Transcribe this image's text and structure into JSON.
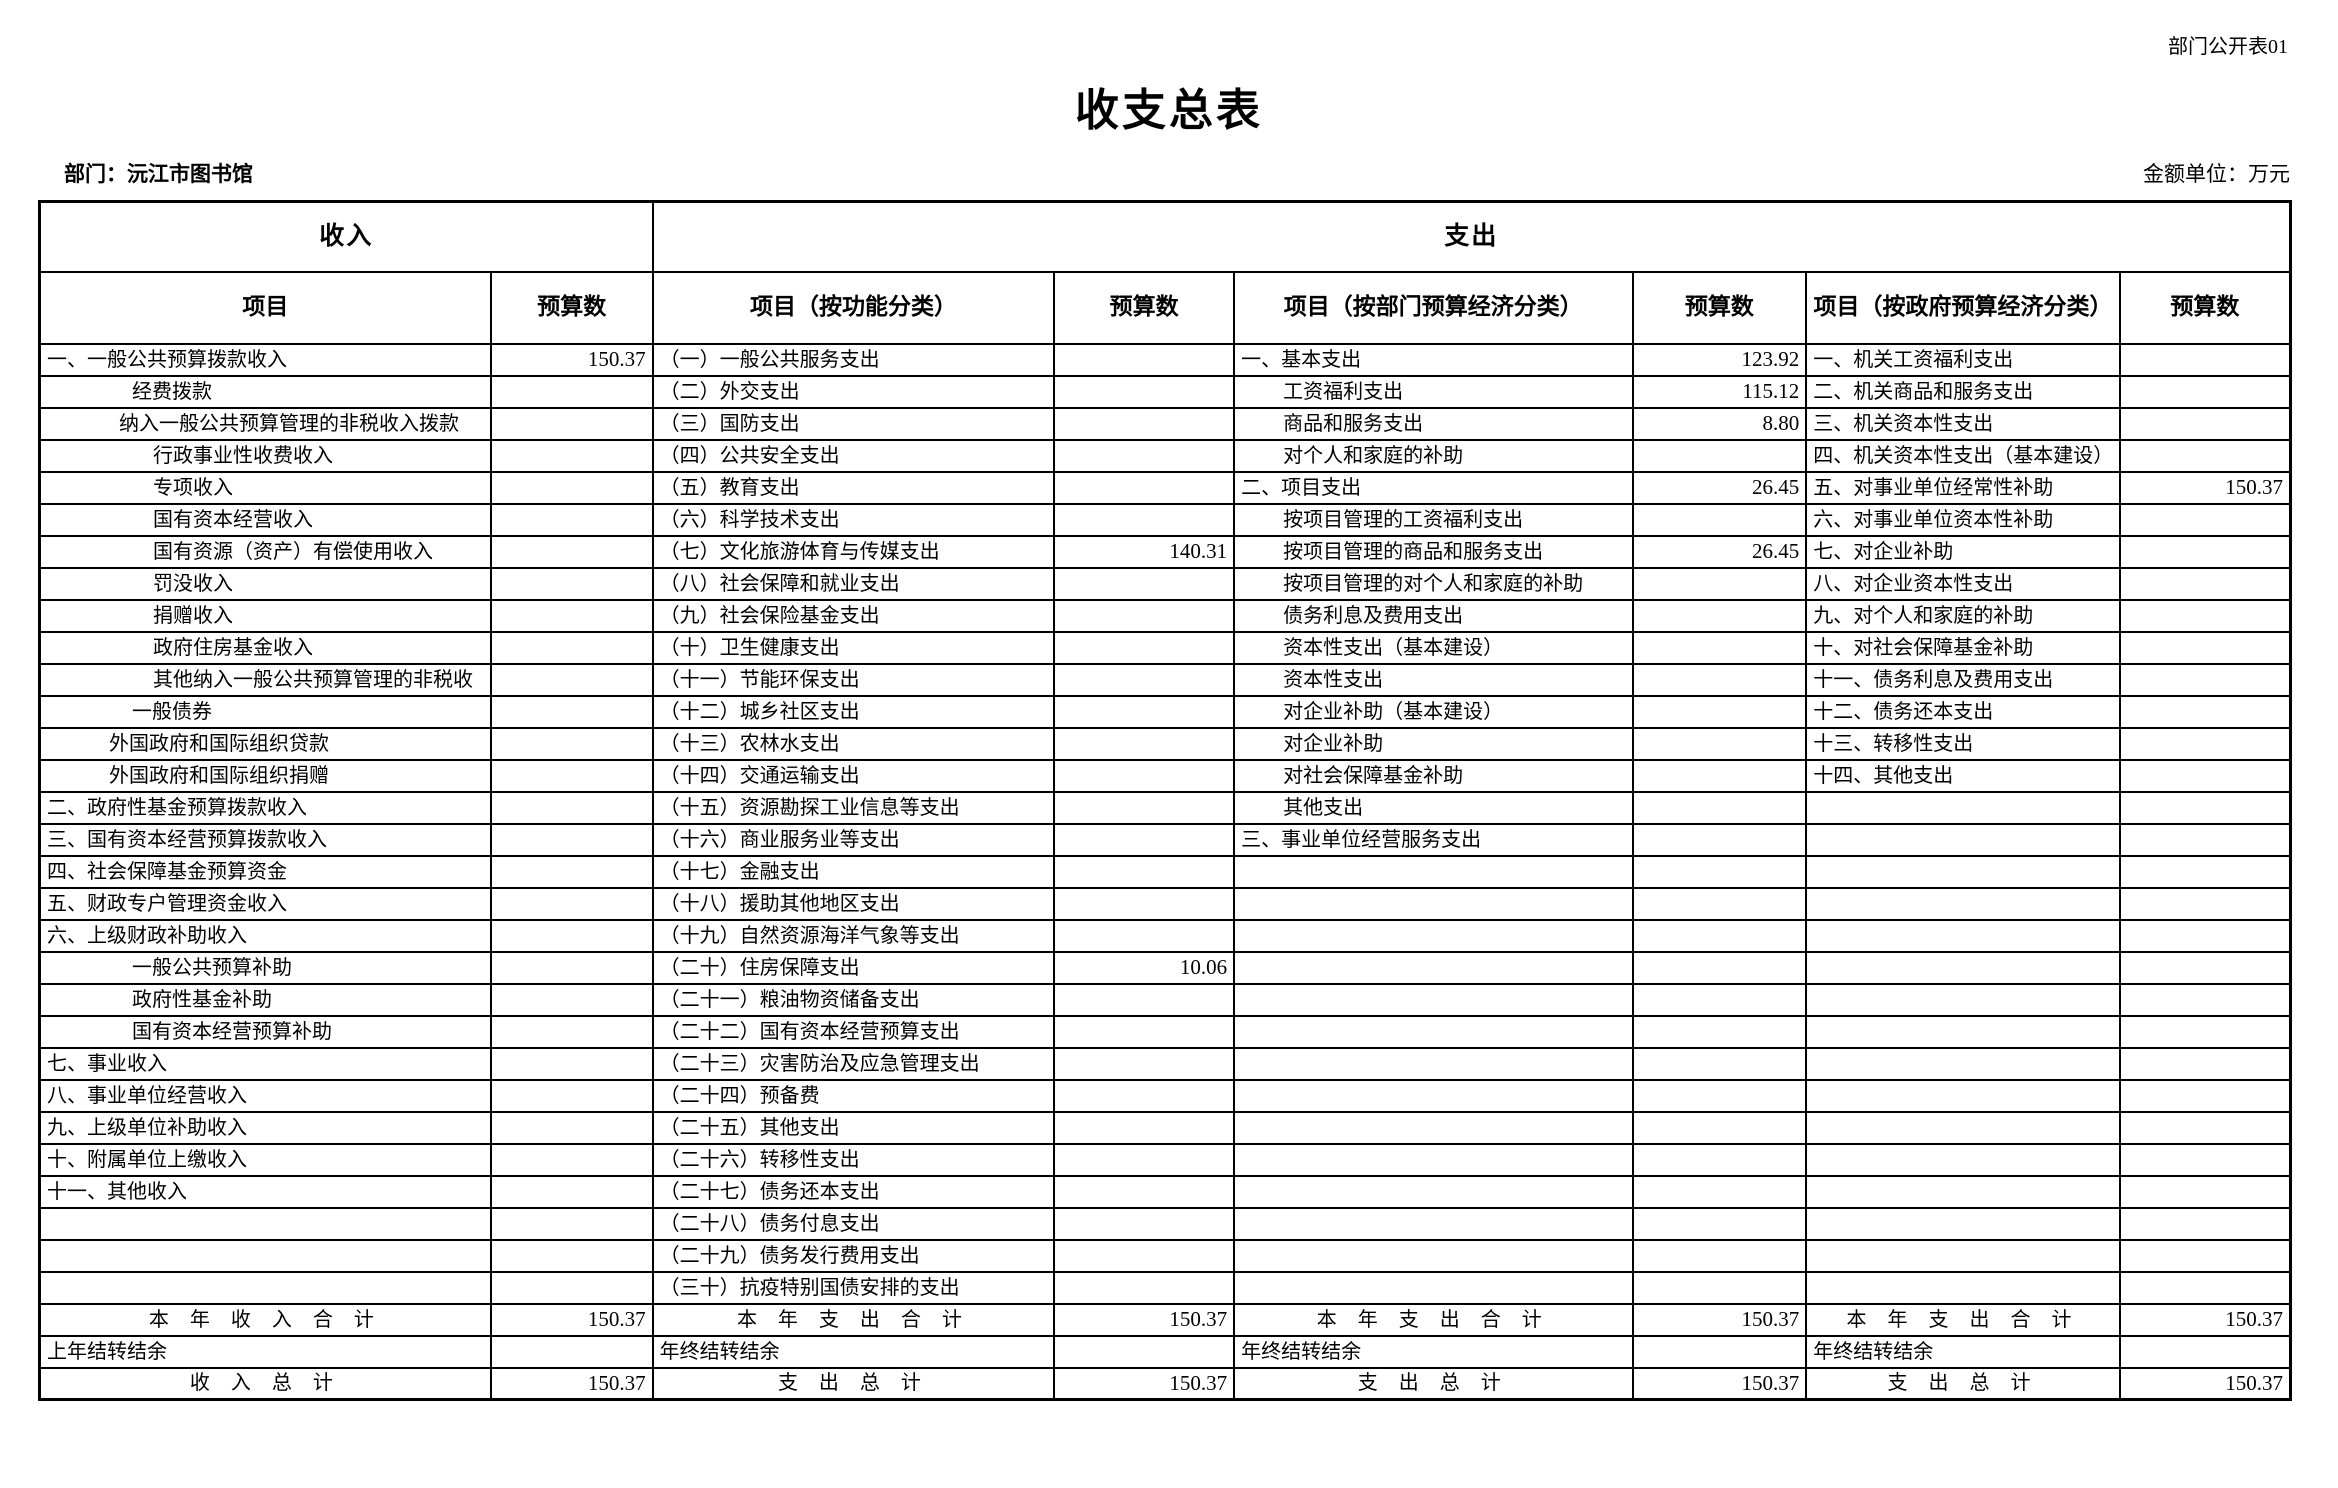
{
  "meta": {
    "corner_note": "部门公开表01",
    "title": "收支总表",
    "department_label": "部门：沅江市图书馆",
    "unit_label": "金额单位：万元"
  },
  "table": {
    "group_headers": {
      "income": "收入",
      "expenditure": "支出"
    },
    "col_headers": [
      "项目",
      "预算数",
      "项目（按功能分类）",
      "预算数",
      "项目（按部门预算经济分类）",
      "预算数",
      "项目（按政府预算经济分类）",
      "预算数"
    ],
    "rows": [
      [
        "一、一般公共预算拨款收入",
        "150.37",
        "（一）一般公共服务支出",
        "",
        "一、基本支出",
        "123.92",
        "一、机关工资福利支出",
        ""
      ],
      [
        [
          "经费拨款",
          "i3"
        ],
        "",
        "（二）外交支出",
        "",
        [
          "工资福利支出",
          "i5"
        ],
        "115.12",
        "二、机关商品和服务支出",
        ""
      ],
      [
        [
          "纳入一般公共预算管理的非税收入拨款",
          "i2"
        ],
        "",
        "（三）国防支出",
        "",
        [
          "商品和服务支出",
          "i5"
        ],
        "8.80",
        "三、机关资本性支出",
        ""
      ],
      [
        [
          "行政事业性收费收入",
          "i4"
        ],
        "",
        "（四）公共安全支出",
        "",
        [
          "对个人和家庭的补助",
          "i5"
        ],
        "",
        "四、机关资本性支出（基本建设）",
        ""
      ],
      [
        [
          "专项收入",
          "i4"
        ],
        "",
        "（五）教育支出",
        "",
        "二、项目支出",
        "26.45",
        "五、对事业单位经常性补助",
        "150.37"
      ],
      [
        [
          "国有资本经营收入",
          "i4"
        ],
        "",
        "（六）科学技术支出",
        "",
        [
          "按项目管理的工资福利支出",
          "i5"
        ],
        "",
        "六、对事业单位资本性补助",
        ""
      ],
      [
        [
          "国有资源（资产）有偿使用收入",
          "i4"
        ],
        "",
        "（七）文化旅游体育与传媒支出",
        "140.31",
        [
          "按项目管理的商品和服务支出",
          "i5"
        ],
        "26.45",
        "七、对企业补助",
        ""
      ],
      [
        [
          "罚没收入",
          "i4"
        ],
        "",
        "（八）社会保障和就业支出",
        "",
        [
          "按项目管理的对个人和家庭的补助",
          "i5"
        ],
        "",
        "八、对企业资本性支出",
        ""
      ],
      [
        [
          "捐赠收入",
          "i4"
        ],
        "",
        "（九）社会保险基金支出",
        "",
        [
          "债务利息及费用支出",
          "i5"
        ],
        "",
        "九、对个人和家庭的补助",
        ""
      ],
      [
        [
          "政府住房基金收入",
          "i4"
        ],
        "",
        "（十）卫生健康支出",
        "",
        [
          "资本性支出（基本建设）",
          "i5"
        ],
        "",
        "十、对社会保障基金补助",
        ""
      ],
      [
        [
          "其他纳入一般公共预算管理的非税收",
          "i4"
        ],
        "",
        "（十一）节能环保支出",
        "",
        [
          "资本性支出",
          "i5"
        ],
        "",
        "十一、债务利息及费用支出",
        ""
      ],
      [
        [
          "一般债券",
          "i3"
        ],
        "",
        "（十二）城乡社区支出",
        "",
        [
          "对企业补助（基本建设）",
          "i5"
        ],
        "",
        "十二、债务还本支出",
        ""
      ],
      [
        [
          "外国政府和国际组织贷款",
          "i1"
        ],
        "",
        "（十三）农林水支出",
        "",
        [
          "对企业补助",
          "i5"
        ],
        "",
        "十三、转移性支出",
        ""
      ],
      [
        [
          "外国政府和国际组织捐赠",
          "i1"
        ],
        "",
        "（十四）交通运输支出",
        "",
        [
          "对社会保障基金补助",
          "i5"
        ],
        "",
        "十四、其他支出",
        ""
      ],
      [
        "二、政府性基金预算拨款收入",
        "",
        "（十五）资源勘探工业信息等支出",
        "",
        [
          "其他支出",
          "i5"
        ],
        "",
        "",
        ""
      ],
      [
        "三、国有资本经营预算拨款收入",
        "",
        "（十六）商业服务业等支出",
        "",
        "三、事业单位经营服务支出",
        "",
        "",
        ""
      ],
      [
        "四、社会保障基金预算资金",
        "",
        "（十七）金融支出",
        "",
        "",
        "",
        "",
        ""
      ],
      [
        "五、财政专户管理资金收入",
        "",
        "（十八）援助其他地区支出",
        "",
        "",
        "",
        "",
        ""
      ],
      [
        "六、上级财政补助收入",
        "",
        "（十九）自然资源海洋气象等支出",
        "",
        "",
        "",
        "",
        ""
      ],
      [
        [
          "一般公共预算补助",
          "i3"
        ],
        "",
        "（二十）住房保障支出",
        "10.06",
        "",
        "",
        "",
        ""
      ],
      [
        [
          "政府性基金补助",
          "i3"
        ],
        "",
        "（二十一）粮油物资储备支出",
        "",
        "",
        "",
        "",
        ""
      ],
      [
        [
          "国有资本经营预算补助",
          "i3"
        ],
        "",
        "（二十二）国有资本经营预算支出",
        "",
        "",
        "",
        "",
        ""
      ],
      [
        "七、事业收入",
        "",
        "（二十三）灾害防治及应急管理支出",
        "",
        "",
        "",
        "",
        ""
      ],
      [
        "八、事业单位经营收入",
        "",
        "（二十四）预备费",
        "",
        "",
        "",
        "",
        ""
      ],
      [
        "九、上级单位补助收入",
        "",
        "（二十五）其他支出",
        "",
        "",
        "",
        "",
        ""
      ],
      [
        "十、附属单位上缴收入",
        "",
        "（二十六）转移性支出",
        "",
        "",
        "",
        "",
        ""
      ],
      [
        "十一、其他收入",
        "",
        "（二十七）债务还本支出",
        "",
        "",
        "",
        "",
        ""
      ],
      [
        "",
        "",
        "（二十八）债务付息支出",
        "",
        "",
        "",
        "",
        ""
      ],
      [
        "",
        "",
        "（二十九）债务发行费用支出",
        "",
        "",
        "",
        "",
        ""
      ],
      [
        "",
        "",
        "（三十）抗疫特别国债安排的支出",
        "",
        "",
        "",
        "",
        ""
      ],
      [
        [
          "本 年 收 入 合 计",
          "c"
        ],
        "150.37",
        [
          "本 年 支 出 合 计",
          "c"
        ],
        "150.37",
        [
          "本 年 支 出 合 计",
          "c"
        ],
        "150.37",
        [
          "本 年 支 出 合 计",
          "c"
        ],
        "150.37"
      ],
      [
        "上年结转结余",
        "",
        "年终结转结余",
        "",
        "年终结转结余",
        "",
        "年终结转结余",
        ""
      ],
      [
        [
          "收 入 总 计",
          "c"
        ],
        "150.37",
        [
          "支 出 总 计",
          "c"
        ],
        "150.37",
        [
          "支 出 总 计",
          "c"
        ],
        "150.37",
        [
          "支 出 总 计",
          "c"
        ],
        "150.37"
      ]
    ]
  }
}
